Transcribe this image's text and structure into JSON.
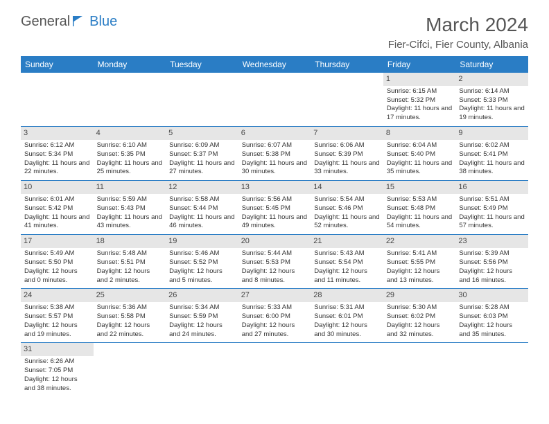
{
  "logo": {
    "part1": "General",
    "part2": "Blue"
  },
  "title": "March 2024",
  "location": "Fier-Cifci, Fier County, Albania",
  "headers": [
    "Sunday",
    "Monday",
    "Tuesday",
    "Wednesday",
    "Thursday",
    "Friday",
    "Saturday"
  ],
  "colors": {
    "header_bg": "#2a7dc5",
    "header_fg": "#ffffff",
    "daynum_bg": "#e6e6e6",
    "border": "#2a7dc5",
    "logo_blue": "#2a7dc5",
    "text": "#333333"
  },
  "weeks": [
    [
      null,
      null,
      null,
      null,
      null,
      {
        "n": "1",
        "sr": "Sunrise: 6:15 AM",
        "ss": "Sunset: 5:32 PM",
        "dl": "Daylight: 11 hours and 17 minutes."
      },
      {
        "n": "2",
        "sr": "Sunrise: 6:14 AM",
        "ss": "Sunset: 5:33 PM",
        "dl": "Daylight: 11 hours and 19 minutes."
      }
    ],
    [
      {
        "n": "3",
        "sr": "Sunrise: 6:12 AM",
        "ss": "Sunset: 5:34 PM",
        "dl": "Daylight: 11 hours and 22 minutes."
      },
      {
        "n": "4",
        "sr": "Sunrise: 6:10 AM",
        "ss": "Sunset: 5:35 PM",
        "dl": "Daylight: 11 hours and 25 minutes."
      },
      {
        "n": "5",
        "sr": "Sunrise: 6:09 AM",
        "ss": "Sunset: 5:37 PM",
        "dl": "Daylight: 11 hours and 27 minutes."
      },
      {
        "n": "6",
        "sr": "Sunrise: 6:07 AM",
        "ss": "Sunset: 5:38 PM",
        "dl": "Daylight: 11 hours and 30 minutes."
      },
      {
        "n": "7",
        "sr": "Sunrise: 6:06 AM",
        "ss": "Sunset: 5:39 PM",
        "dl": "Daylight: 11 hours and 33 minutes."
      },
      {
        "n": "8",
        "sr": "Sunrise: 6:04 AM",
        "ss": "Sunset: 5:40 PM",
        "dl": "Daylight: 11 hours and 35 minutes."
      },
      {
        "n": "9",
        "sr": "Sunrise: 6:02 AM",
        "ss": "Sunset: 5:41 PM",
        "dl": "Daylight: 11 hours and 38 minutes."
      }
    ],
    [
      {
        "n": "10",
        "sr": "Sunrise: 6:01 AM",
        "ss": "Sunset: 5:42 PM",
        "dl": "Daylight: 11 hours and 41 minutes."
      },
      {
        "n": "11",
        "sr": "Sunrise: 5:59 AM",
        "ss": "Sunset: 5:43 PM",
        "dl": "Daylight: 11 hours and 43 minutes."
      },
      {
        "n": "12",
        "sr": "Sunrise: 5:58 AM",
        "ss": "Sunset: 5:44 PM",
        "dl": "Daylight: 11 hours and 46 minutes."
      },
      {
        "n": "13",
        "sr": "Sunrise: 5:56 AM",
        "ss": "Sunset: 5:45 PM",
        "dl": "Daylight: 11 hours and 49 minutes."
      },
      {
        "n": "14",
        "sr": "Sunrise: 5:54 AM",
        "ss": "Sunset: 5:46 PM",
        "dl": "Daylight: 11 hours and 52 minutes."
      },
      {
        "n": "15",
        "sr": "Sunrise: 5:53 AM",
        "ss": "Sunset: 5:48 PM",
        "dl": "Daylight: 11 hours and 54 minutes."
      },
      {
        "n": "16",
        "sr": "Sunrise: 5:51 AM",
        "ss": "Sunset: 5:49 PM",
        "dl": "Daylight: 11 hours and 57 minutes."
      }
    ],
    [
      {
        "n": "17",
        "sr": "Sunrise: 5:49 AM",
        "ss": "Sunset: 5:50 PM",
        "dl": "Daylight: 12 hours and 0 minutes."
      },
      {
        "n": "18",
        "sr": "Sunrise: 5:48 AM",
        "ss": "Sunset: 5:51 PM",
        "dl": "Daylight: 12 hours and 2 minutes."
      },
      {
        "n": "19",
        "sr": "Sunrise: 5:46 AM",
        "ss": "Sunset: 5:52 PM",
        "dl": "Daylight: 12 hours and 5 minutes."
      },
      {
        "n": "20",
        "sr": "Sunrise: 5:44 AM",
        "ss": "Sunset: 5:53 PM",
        "dl": "Daylight: 12 hours and 8 minutes."
      },
      {
        "n": "21",
        "sr": "Sunrise: 5:43 AM",
        "ss": "Sunset: 5:54 PM",
        "dl": "Daylight: 12 hours and 11 minutes."
      },
      {
        "n": "22",
        "sr": "Sunrise: 5:41 AM",
        "ss": "Sunset: 5:55 PM",
        "dl": "Daylight: 12 hours and 13 minutes."
      },
      {
        "n": "23",
        "sr": "Sunrise: 5:39 AM",
        "ss": "Sunset: 5:56 PM",
        "dl": "Daylight: 12 hours and 16 minutes."
      }
    ],
    [
      {
        "n": "24",
        "sr": "Sunrise: 5:38 AM",
        "ss": "Sunset: 5:57 PM",
        "dl": "Daylight: 12 hours and 19 minutes."
      },
      {
        "n": "25",
        "sr": "Sunrise: 5:36 AM",
        "ss": "Sunset: 5:58 PM",
        "dl": "Daylight: 12 hours and 22 minutes."
      },
      {
        "n": "26",
        "sr": "Sunrise: 5:34 AM",
        "ss": "Sunset: 5:59 PM",
        "dl": "Daylight: 12 hours and 24 minutes."
      },
      {
        "n": "27",
        "sr": "Sunrise: 5:33 AM",
        "ss": "Sunset: 6:00 PM",
        "dl": "Daylight: 12 hours and 27 minutes."
      },
      {
        "n": "28",
        "sr": "Sunrise: 5:31 AM",
        "ss": "Sunset: 6:01 PM",
        "dl": "Daylight: 12 hours and 30 minutes."
      },
      {
        "n": "29",
        "sr": "Sunrise: 5:30 AM",
        "ss": "Sunset: 6:02 PM",
        "dl": "Daylight: 12 hours and 32 minutes."
      },
      {
        "n": "30",
        "sr": "Sunrise: 5:28 AM",
        "ss": "Sunset: 6:03 PM",
        "dl": "Daylight: 12 hours and 35 minutes."
      }
    ],
    [
      {
        "n": "31",
        "sr": "Sunrise: 6:26 AM",
        "ss": "Sunset: 7:05 PM",
        "dl": "Daylight: 12 hours and 38 minutes."
      },
      null,
      null,
      null,
      null,
      null,
      null
    ]
  ]
}
